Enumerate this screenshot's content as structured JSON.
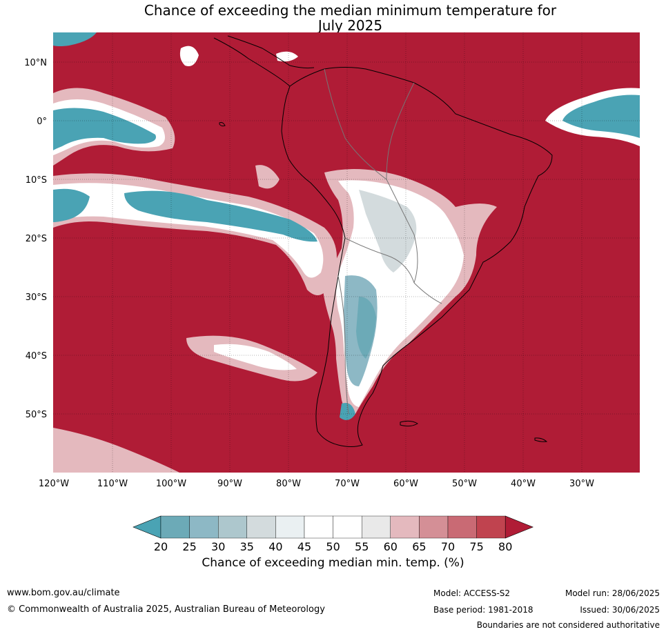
{
  "title_line1": "Chance of exceeding the median minimum temperature for",
  "title_line2": "July 2025",
  "lat_labels": [
    "10°N",
    "0°",
    "10°S",
    "20°S",
    "30°S",
    "40°S",
    "50°S"
  ],
  "lon_labels": [
    "120°W",
    "110°W",
    "100°W",
    "90°W",
    "80°W",
    "70°W",
    "60°W",
    "50°W",
    "40°W",
    "30°W"
  ],
  "colorbar": {
    "ticks": [
      "20",
      "25",
      "30",
      "35",
      "40",
      "45",
      "50",
      "55",
      "60",
      "65",
      "70",
      "75",
      "80"
    ],
    "label": "Chance of exceeding median min. temp. (%)",
    "colors": [
      "#4aa3b4",
      "#6caab7",
      "#8db8c5",
      "#adc7cd",
      "#d3dbdd",
      "#eaf0f2",
      "#ffffff",
      "#ffffff",
      "#e9e9e9",
      "#e4b9be",
      "#d48f96",
      "#c96a74",
      "#c0434f",
      "#b01c36"
    ]
  },
  "footer": {
    "website": "www.bom.gov.au/climate",
    "copyright": "© Commonwealth of Australia 2025, Australian Bureau of Meteorology",
    "model": "Model: ACCESS-S2",
    "base_period": "Base period: 1981-2018",
    "model_run": "Model run: 28/06/2025",
    "issued": "Issued: 30/06/2025",
    "disclaimer": "Boundaries are not considered authoritative"
  }
}
